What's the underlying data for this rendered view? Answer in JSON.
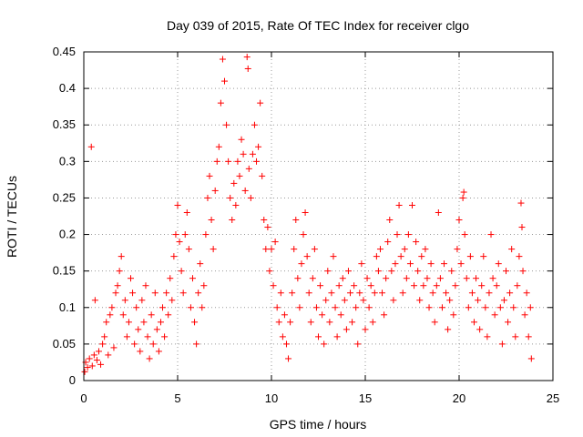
{
  "chart_data": {
    "type": "scatter",
    "title": "Day 039 of 2015, Rate Of TEC Index for receiver clgo",
    "xlabel": "GPS time / hours",
    "ylabel": "ROTI / TECUs",
    "xlim": [
      0,
      25
    ],
    "ylim": [
      0,
      0.45
    ],
    "xticks": [
      0,
      5,
      10,
      15,
      20,
      25
    ],
    "yticks": [
      0,
      0.05,
      0.1,
      0.15,
      0.2,
      0.25,
      0.3,
      0.35,
      0.4,
      0.45
    ],
    "xtick_labels": [
      "0",
      "5",
      "10",
      "15",
      "20",
      "25"
    ],
    "ytick_labels": [
      "0",
      "0.05",
      "0.1",
      "0.15",
      "0.2",
      "0.25",
      "0.3",
      "0.35",
      "0.4",
      "0.45"
    ],
    "grid": true,
    "grid_style": "dotted",
    "marker": "+",
    "marker_color": "#ff0000",
    "series": [
      {
        "points": [
          [
            0.05,
            0.012
          ],
          [
            0.1,
            0.025
          ],
          [
            0.2,
            0.018
          ],
          [
            0.3,
            0.03
          ],
          [
            0.4,
            0.32
          ],
          [
            0.45,
            0.02
          ],
          [
            0.55,
            0.035
          ],
          [
            0.6,
            0.11
          ],
          [
            0.7,
            0.028
          ],
          [
            0.8,
            0.04
          ],
          [
            0.9,
            0.022
          ],
          [
            1.0,
            0.05
          ],
          [
            1.1,
            0.06
          ],
          [
            1.2,
            0.08
          ],
          [
            1.3,
            0.035
          ],
          [
            1.4,
            0.09
          ],
          [
            1.5,
            0.1
          ],
          [
            1.6,
            0.045
          ],
          [
            1.7,
            0.12
          ],
          [
            1.8,
            0.13
          ],
          [
            1.9,
            0.15
          ],
          [
            2.0,
            0.17
          ],
          [
            2.1,
            0.09
          ],
          [
            2.2,
            0.11
          ],
          [
            2.3,
            0.06
          ],
          [
            2.4,
            0.08
          ],
          [
            2.5,
            0.14
          ],
          [
            2.6,
            0.12
          ],
          [
            2.7,
            0.05
          ],
          [
            2.8,
            0.1
          ],
          [
            2.9,
            0.07
          ],
          [
            3.0,
            0.04
          ],
          [
            3.1,
            0.11
          ],
          [
            3.2,
            0.08
          ],
          [
            3.3,
            0.13
          ],
          [
            3.4,
            0.06
          ],
          [
            3.5,
            0.03
          ],
          [
            3.6,
            0.09
          ],
          [
            3.7,
            0.05
          ],
          [
            3.8,
            0.12
          ],
          [
            3.9,
            0.07
          ],
          [
            4.0,
            0.04
          ],
          [
            4.1,
            0.08
          ],
          [
            4.2,
            0.1
          ],
          [
            4.3,
            0.06
          ],
          [
            4.4,
            0.12
          ],
          [
            4.5,
            0.09
          ],
          [
            4.6,
            0.14
          ],
          [
            4.7,
            0.11
          ],
          [
            4.8,
            0.17
          ],
          [
            4.9,
            0.2
          ],
          [
            5.0,
            0.24
          ],
          [
            5.1,
            0.19
          ],
          [
            5.2,
            0.15
          ],
          [
            5.3,
            0.12
          ],
          [
            5.4,
            0.2
          ],
          [
            5.5,
            0.23
          ],
          [
            5.6,
            0.18
          ],
          [
            5.7,
            0.1
          ],
          [
            5.8,
            0.14
          ],
          [
            5.9,
            0.08
          ],
          [
            6.0,
            0.05
          ],
          [
            6.1,
            0.12
          ],
          [
            6.2,
            0.16
          ],
          [
            6.3,
            0.1
          ],
          [
            6.4,
            0.13
          ],
          [
            6.5,
            0.2
          ],
          [
            6.6,
            0.25
          ],
          [
            6.7,
            0.28
          ],
          [
            6.8,
            0.22
          ],
          [
            6.9,
            0.18
          ],
          [
            7.0,
            0.26
          ],
          [
            7.1,
            0.3
          ],
          [
            7.2,
            0.32
          ],
          [
            7.3,
            0.38
          ],
          [
            7.4,
            0.44
          ],
          [
            7.5,
            0.41
          ],
          [
            7.6,
            0.35
          ],
          [
            7.7,
            0.3
          ],
          [
            7.8,
            0.25
          ],
          [
            7.9,
            0.22
          ],
          [
            8.0,
            0.27
          ],
          [
            8.1,
            0.24
          ],
          [
            8.2,
            0.3
          ],
          [
            8.3,
            0.28
          ],
          [
            8.4,
            0.33
          ],
          [
            8.5,
            0.31
          ],
          [
            8.6,
            0.26
          ],
          [
            8.7,
            0.443
          ],
          [
            8.75,
            0.427
          ],
          [
            8.8,
            0.29
          ],
          [
            8.9,
            0.25
          ],
          [
            9.0,
            0.31
          ],
          [
            9.1,
            0.35
          ],
          [
            9.2,
            0.3
          ],
          [
            9.3,
            0.32
          ],
          [
            9.4,
            0.38
          ],
          [
            9.5,
            0.28
          ],
          [
            9.6,
            0.22
          ],
          [
            9.7,
            0.18
          ],
          [
            9.8,
            0.21
          ],
          [
            9.9,
            0.15
          ],
          [
            10.0,
            0.18
          ],
          [
            10.1,
            0.13
          ],
          [
            10.2,
            0.19
          ],
          [
            10.3,
            0.1
          ],
          [
            10.4,
            0.08
          ],
          [
            10.5,
            0.12
          ],
          [
            10.6,
            0.06
          ],
          [
            10.7,
            0.09
          ],
          [
            10.8,
            0.05
          ],
          [
            10.9,
            0.03
          ],
          [
            11.0,
            0.08
          ],
          [
            11.1,
            0.12
          ],
          [
            11.2,
            0.18
          ],
          [
            11.3,
            0.22
          ],
          [
            11.4,
            0.14
          ],
          [
            11.5,
            0.1
          ],
          [
            11.6,
            0.16
          ],
          [
            11.7,
            0.2
          ],
          [
            11.8,
            0.23
          ],
          [
            11.9,
            0.17
          ],
          [
            12.0,
            0.12
          ],
          [
            12.1,
            0.08
          ],
          [
            12.2,
            0.14
          ],
          [
            12.3,
            0.18
          ],
          [
            12.4,
            0.1
          ],
          [
            12.5,
            0.06
          ],
          [
            12.6,
            0.13
          ],
          [
            12.7,
            0.09
          ],
          [
            12.8,
            0.05
          ],
          [
            12.9,
            0.11
          ],
          [
            13.0,
            0.15
          ],
          [
            13.1,
            0.08
          ],
          [
            13.2,
            0.12
          ],
          [
            13.3,
            0.17
          ],
          [
            13.4,
            0.1
          ],
          [
            13.5,
            0.06
          ],
          [
            13.6,
            0.13
          ],
          [
            13.7,
            0.09
          ],
          [
            13.8,
            0.14
          ],
          [
            13.9,
            0.11
          ],
          [
            14.0,
            0.07
          ],
          [
            14.1,
            0.15
          ],
          [
            14.2,
            0.12
          ],
          [
            14.3,
            0.08
          ],
          [
            14.4,
            0.13
          ],
          [
            14.5,
            0.1
          ],
          [
            14.6,
            0.05
          ],
          [
            14.7,
            0.12
          ],
          [
            14.8,
            0.16
          ],
          [
            14.9,
            0.11
          ],
          [
            15.0,
            0.07
          ],
          [
            15.1,
            0.14
          ],
          [
            15.2,
            0.1
          ],
          [
            15.3,
            0.13
          ],
          [
            15.4,
            0.08
          ],
          [
            15.5,
            0.12
          ],
          [
            15.6,
            0.17
          ],
          [
            15.7,
            0.15
          ],
          [
            15.8,
            0.18
          ],
          [
            15.9,
            0.12
          ],
          [
            16.0,
            0.09
          ],
          [
            16.1,
            0.14
          ],
          [
            16.2,
            0.19
          ],
          [
            16.3,
            0.22
          ],
          [
            16.4,
            0.15
          ],
          [
            16.5,
            0.11
          ],
          [
            16.6,
            0.16
          ],
          [
            16.7,
            0.2
          ],
          [
            16.8,
            0.24
          ],
          [
            16.9,
            0.17
          ],
          [
            17.0,
            0.12
          ],
          [
            17.1,
            0.18
          ],
          [
            17.2,
            0.14
          ],
          [
            17.3,
            0.2
          ],
          [
            17.4,
            0.16
          ],
          [
            17.5,
            0.24
          ],
          [
            17.6,
            0.13
          ],
          [
            17.7,
            0.19
          ],
          [
            17.8,
            0.15
          ],
          [
            17.9,
            0.11
          ],
          [
            18.0,
            0.17
          ],
          [
            18.1,
            0.13
          ],
          [
            18.2,
            0.18
          ],
          [
            18.3,
            0.14
          ],
          [
            18.4,
            0.1
          ],
          [
            18.5,
            0.16
          ],
          [
            18.6,
            0.12
          ],
          [
            18.7,
            0.08
          ],
          [
            18.8,
            0.13
          ],
          [
            18.9,
            0.23
          ],
          [
            19.0,
            0.14
          ],
          [
            19.1,
            0.1
          ],
          [
            19.2,
            0.16
          ],
          [
            19.3,
            0.12
          ],
          [
            19.4,
            0.07
          ],
          [
            19.5,
            0.11
          ],
          [
            19.6,
            0.15
          ],
          [
            19.7,
            0.09
          ],
          [
            19.8,
            0.13
          ],
          [
            19.9,
            0.18
          ],
          [
            20.0,
            0.22
          ],
          [
            20.1,
            0.16
          ],
          [
            20.2,
            0.25
          ],
          [
            20.25,
            0.258
          ],
          [
            20.3,
            0.2
          ],
          [
            20.4,
            0.14
          ],
          [
            20.5,
            0.1
          ],
          [
            20.6,
            0.17
          ],
          [
            20.7,
            0.12
          ],
          [
            20.8,
            0.08
          ],
          [
            20.9,
            0.14
          ],
          [
            21.0,
            0.11
          ],
          [
            21.1,
            0.07
          ],
          [
            21.2,
            0.13
          ],
          [
            21.3,
            0.17
          ],
          [
            21.4,
            0.1
          ],
          [
            21.5,
            0.06
          ],
          [
            21.6,
            0.12
          ],
          [
            21.7,
            0.2
          ],
          [
            21.8,
            0.14
          ],
          [
            21.9,
            0.09
          ],
          [
            22.0,
            0.13
          ],
          [
            22.1,
            0.16
          ],
          [
            22.2,
            0.1
          ],
          [
            22.3,
            0.05
          ],
          [
            22.4,
            0.11
          ],
          [
            22.5,
            0.15
          ],
          [
            22.6,
            0.08
          ],
          [
            22.7,
            0.12
          ],
          [
            22.8,
            0.18
          ],
          [
            22.9,
            0.1
          ],
          [
            23.0,
            0.06
          ],
          [
            23.1,
            0.13
          ],
          [
            23.2,
            0.17
          ],
          [
            23.3,
            0.243
          ],
          [
            23.35,
            0.21
          ],
          [
            23.4,
            0.15
          ],
          [
            23.5,
            0.09
          ],
          [
            23.6,
            0.12
          ],
          [
            23.7,
            0.06
          ],
          [
            23.8,
            0.1
          ],
          [
            23.85,
            0.03
          ]
        ]
      }
    ]
  }
}
